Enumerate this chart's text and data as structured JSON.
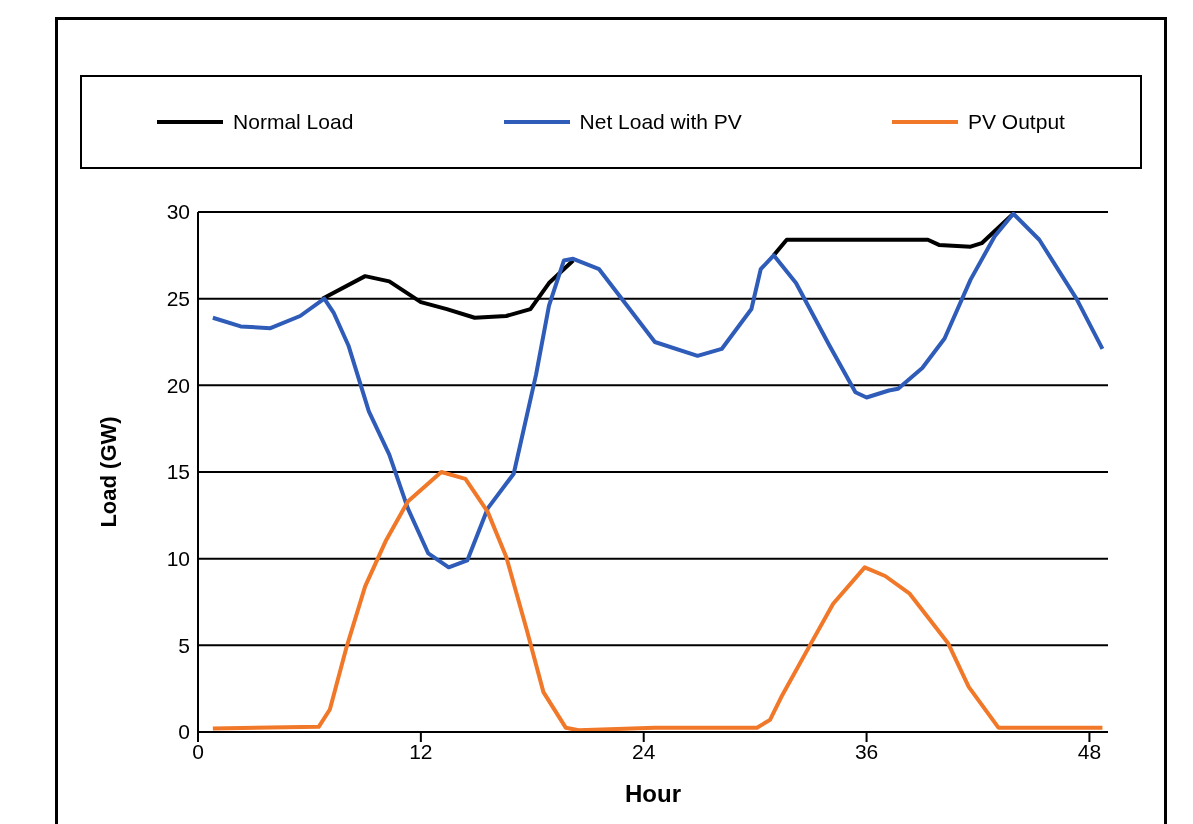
{
  "chart_data": {
    "type": "line",
    "xlabel": "Hour",
    "ylabel": "Load (GW)",
    "xlim": [
      0,
      49
    ],
    "xticks": [
      0,
      12,
      24,
      36,
      48
    ],
    "ylim": [
      0,
      30
    ],
    "yticks": [
      0,
      5,
      10,
      15,
      20,
      25,
      30
    ],
    "grid": "y",
    "legend": "top",
    "marker": "none",
    "line_style": "solid",
    "series": [
      {
        "name": "Normal Load",
        "color": "#000000",
        "x": [
          6.7,
          9.0,
          10.3,
          12.0,
          13.4,
          14.9,
          16.6,
          17.9,
          18.9,
          20.2,
          25.0,
          31.0,
          31.7,
          39.3,
          39.9,
          41.6,
          42.2,
          43.9
        ],
        "values": [
          25.0,
          26.3,
          26.0,
          24.8,
          24.4,
          23.9,
          24.0,
          24.4,
          25.9,
          27.2,
          null,
          27.5,
          28.4,
          28.4,
          28.1,
          28.0,
          28.2,
          29.9
        ]
      },
      {
        "name": "Net Load with PV",
        "color": "#2e5cb8",
        "x": [
          0.8,
          2.3,
          3.9,
          5.5,
          6.8,
          7.3,
          8.1,
          9.2,
          10.3,
          11.3,
          12.4,
          13.5,
          14.5,
          15.6,
          17.0,
          18.2,
          18.9,
          19.7,
          20.2,
          21.6,
          22.6,
          24.6,
          26.9,
          28.2,
          29.8,
          30.3,
          31.0,
          32.2,
          34.0,
          35.4,
          36.0,
          37.2,
          37.7,
          39.0,
          40.2,
          41.6,
          42.9,
          43.9,
          45.3,
          47.3,
          48.7
        ],
        "values": [
          23.9,
          23.4,
          23.3,
          24.0,
          25.0,
          24.2,
          22.3,
          18.5,
          16.0,
          12.9,
          10.3,
          9.5,
          9.9,
          12.9,
          14.9,
          20.6,
          24.6,
          27.2,
          27.3,
          26.7,
          25.3,
          22.5,
          21.7,
          22.1,
          24.4,
          26.7,
          27.5,
          25.9,
          22.3,
          19.6,
          19.3,
          19.7,
          19.8,
          21.0,
          22.7,
          26.1,
          28.6,
          29.9,
          28.4,
          25.0,
          22.1
        ]
      },
      {
        "name": "PV Output",
        "color": "#f07828",
        "x": [
          0.8,
          6.5,
          7.1,
          8.0,
          9.0,
          10.1,
          11.3,
          13.1,
          14.4,
          15.6,
          16.6,
          17.7,
          18.6,
          19.8,
          20.5,
          24.6,
          30.1,
          30.8,
          31.4,
          33.0,
          34.2,
          35.9,
          37.0,
          38.3,
          40.4,
          41.5,
          43.1,
          48.7
        ],
        "values": [
          0.2,
          0.3,
          1.3,
          4.9,
          8.4,
          11.0,
          13.3,
          15.0,
          14.6,
          12.7,
          10.1,
          5.9,
          2.3,
          0.25,
          0.1,
          0.25,
          0.25,
          0.7,
          2.0,
          5.1,
          7.4,
          9.5,
          9.0,
          8.0,
          5.1,
          2.6,
          0.25,
          0.25
        ]
      }
    ]
  }
}
